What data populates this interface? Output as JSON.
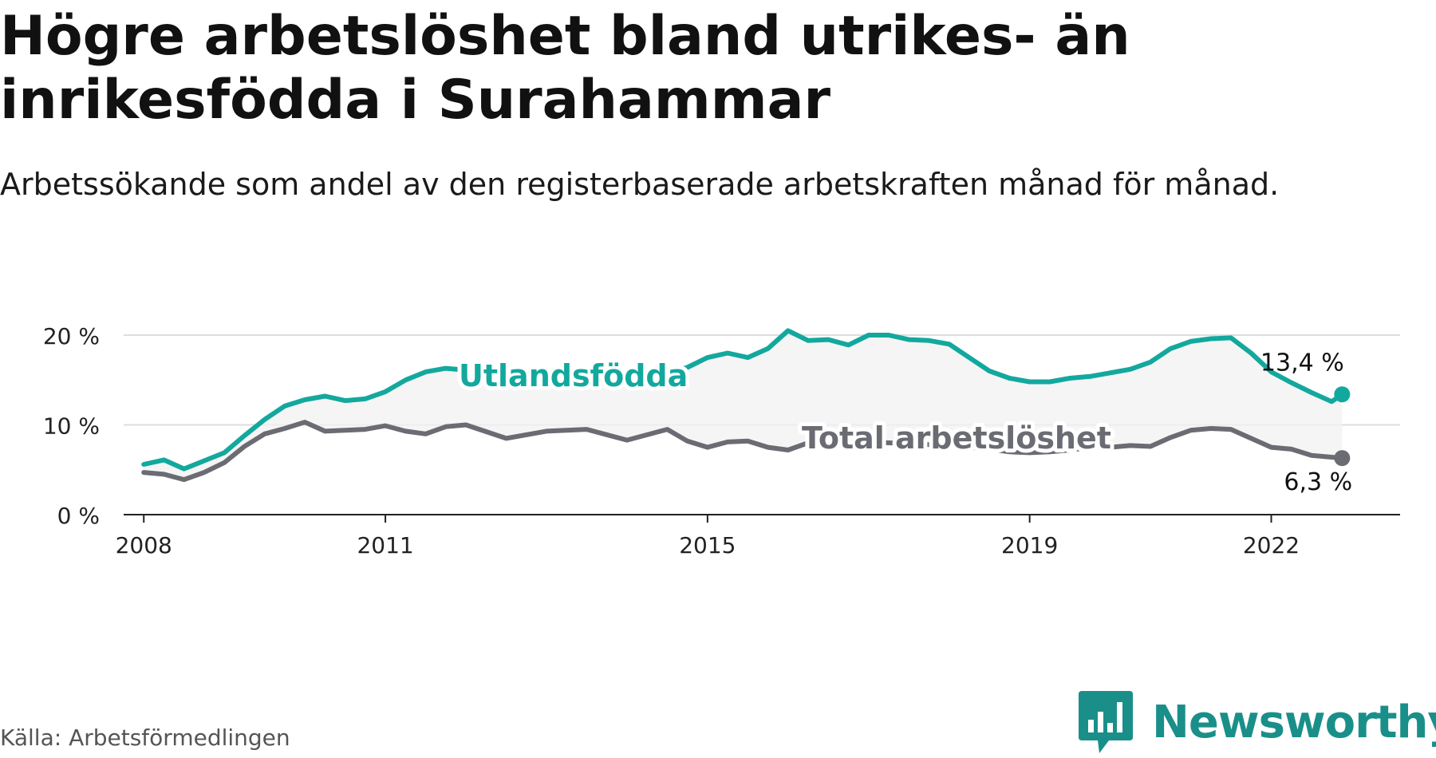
{
  "title": "Högre arbetslöshet bland utrikes- än inrikesfödda i Surahammar",
  "subtitle": "Arbetssökande som andel av den registerbaserade arbetskraften månad för månad.",
  "source": "Källa: Arbetsförmedlingen",
  "brand": "Newsworthy",
  "colors": {
    "utlandsfodda": "#13a89e",
    "total": "#6b6b73",
    "brand": "#1a8f8a",
    "grid": "#dddddd",
    "band": "#f1f1f1"
  },
  "chart_data": {
    "type": "line",
    "title": "Högre arbetslöshet bland utrikes- än inrikesfödda i Surahammar",
    "subtitle": "Arbetssökande som andel av den registerbaserade arbetskraften månad för månad.",
    "xlabel": "",
    "ylabel": "",
    "ylim": [
      0,
      20
    ],
    "xlim": [
      2007.75,
      2023.6
    ],
    "y_ticks": [
      0,
      10,
      20
    ],
    "y_tick_labels": [
      "0 %",
      "10 %",
      "20 %"
    ],
    "x_ticks": [
      2008,
      2011,
      2015,
      2019,
      2022
    ],
    "x_tick_labels": [
      "2008",
      "2011",
      "2015",
      "2019",
      "2022"
    ],
    "grid": true,
    "legend": "inline labels",
    "series": [
      {
        "name": "Utlandsfödda",
        "label": "Utlandsfödda",
        "color": "#13a89e",
        "end_label": "13,4 %",
        "x": [
          2008.0,
          2008.25,
          2008.5,
          2008.75,
          2009.0,
          2009.25,
          2009.5,
          2009.75,
          2010.0,
          2010.25,
          2010.5,
          2010.75,
          2011.0,
          2011.25,
          2011.5,
          2011.75,
          2012.0,
          2012.5,
          2013.0,
          2013.5,
          2014.0,
          2014.5,
          2014.75,
          2015.0,
          2015.25,
          2015.5,
          2015.75,
          2016.0,
          2016.25,
          2016.5,
          2016.75,
          2017.0,
          2017.25,
          2017.5,
          2017.75,
          2018.0,
          2018.25,
          2018.5,
          2018.75,
          2019.0,
          2019.25,
          2019.5,
          2019.75,
          2020.0,
          2020.25,
          2020.5,
          2020.75,
          2021.0,
          2021.25,
          2021.5,
          2021.75,
          2022.0,
          2022.25,
          2022.5,
          2022.75,
          2022.88
        ],
        "values": [
          5.6,
          6.1,
          5.1,
          6.0,
          6.9,
          8.8,
          10.6,
          12.1,
          12.8,
          13.2,
          12.7,
          12.9,
          13.7,
          15.0,
          15.9,
          16.3,
          16.1,
          15.7,
          15.4,
          15.6,
          15.9,
          15.8,
          16.4,
          17.5,
          18.0,
          17.5,
          18.5,
          20.5,
          19.4,
          19.5,
          18.9,
          20.0,
          20.0,
          19.5,
          19.4,
          19.0,
          17.5,
          16.0,
          15.2,
          14.8,
          14.8,
          15.2,
          15.4,
          15.8,
          16.2,
          17.0,
          18.5,
          19.3,
          19.6,
          19.7,
          18.0,
          15.9,
          14.7,
          13.6,
          12.6,
          13.4
        ]
      },
      {
        "name": "Total arbetslöshet",
        "label": "Total arbetslöshet",
        "color": "#6b6b73",
        "end_label": "6,3 %",
        "x": [
          2008.0,
          2008.25,
          2008.5,
          2008.75,
          2009.0,
          2009.25,
          2009.5,
          2009.75,
          2010.0,
          2010.25,
          2010.5,
          2010.75,
          2011.0,
          2011.25,
          2011.5,
          2011.75,
          2012.0,
          2012.5,
          2013.0,
          2013.5,
          2014.0,
          2014.5,
          2014.75,
          2015.0,
          2015.25,
          2015.5,
          2015.75,
          2016.0,
          2016.25,
          2016.5,
          2016.75,
          2017.0,
          2017.25,
          2017.5,
          2017.75,
          2018.0,
          2018.25,
          2018.5,
          2018.75,
          2019.0,
          2019.25,
          2019.5,
          2019.75,
          2020.0,
          2020.25,
          2020.5,
          2020.75,
          2021.0,
          2021.25,
          2021.5,
          2021.75,
          2022.0,
          2022.25,
          2022.5,
          2022.75,
          2022.88
        ],
        "values": [
          4.7,
          4.5,
          3.9,
          4.7,
          5.8,
          7.6,
          9.0,
          9.6,
          10.3,
          9.3,
          9.4,
          9.5,
          9.9,
          9.3,
          9.0,
          9.8,
          10.0,
          8.5,
          9.3,
          9.5,
          8.3,
          9.5,
          8.2,
          7.5,
          8.1,
          8.2,
          7.5,
          7.2,
          8.0,
          8.3,
          8.3,
          8.1,
          8.0,
          7.9,
          7.8,
          7.7,
          7.5,
          7.3,
          7.0,
          6.9,
          7.0,
          7.2,
          7.5,
          7.5,
          7.7,
          7.6,
          8.6,
          9.4,
          9.6,
          9.5,
          8.5,
          7.5,
          7.3,
          6.6,
          6.4,
          6.3
        ]
      }
    ]
  }
}
